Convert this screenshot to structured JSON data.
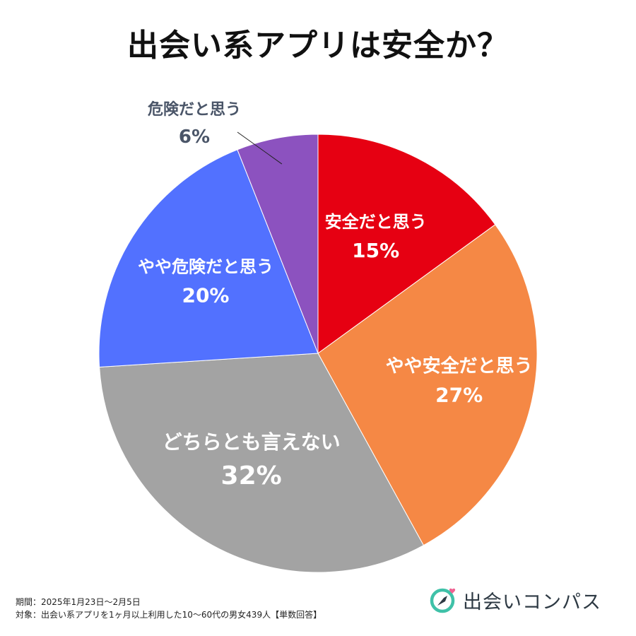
{
  "title": "出会い系アプリは安全か？",
  "chart_data": {
    "type": "pie",
    "title": "出会い系アプリは安全か？",
    "slices": [
      {
        "label": "安全だと思う",
        "value": 15,
        "value_label": "15%",
        "color": "#e60012"
      },
      {
        "label": "やや安全だと思う",
        "value": 27,
        "value_label": "27%",
        "color": "#f58845"
      },
      {
        "label": "どちらとも言えない",
        "value": 32,
        "value_label": "32%",
        "color": "#a3a3a3"
      },
      {
        "label": "やや危険だと思う",
        "value": 20,
        "value_label": "20%",
        "color": "#5271ff"
      },
      {
        "label": "危険だと思う",
        "value": 6,
        "value_label": "6%",
        "color": "#8c52bf"
      }
    ],
    "start": "12 o'clock",
    "direction": "clockwise",
    "legend": "none"
  },
  "footer": {
    "period": "期間：2025年1月23日〜2月5日",
    "target": "対象：出会い系アプリを1ヶ月以上利用した10〜60代の男女439人【単数回答】"
  },
  "brand": {
    "name": "出会いコンパス",
    "icon": "compass-logo-icon",
    "colors": {
      "ring": "#3fc1a8",
      "heart": "#f06292",
      "needle": "#2e3a44"
    }
  }
}
